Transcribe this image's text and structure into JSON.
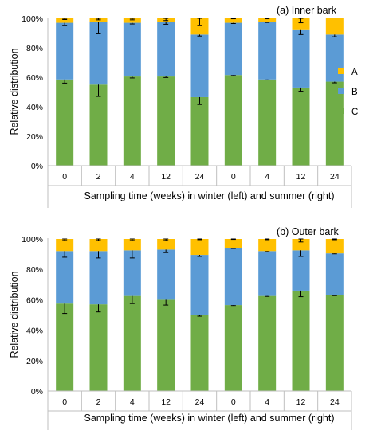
{
  "legend": [
    {
      "key": "A",
      "label": "A",
      "color": "#FFC000"
    },
    {
      "key": "B",
      "label": "B",
      "color": "#5B9BD5"
    },
    {
      "key": "C",
      "label": "C",
      "color": "#70AD47"
    }
  ],
  "chart_data": [
    {
      "type": "bar",
      "stacked": true,
      "title": "(a) Inner bark",
      "ylabel": "Relative distribution",
      "xlabel": "Sampling time (weeks) in winter (left) and summer (right)",
      "yticks": [
        "0%",
        "20%",
        "40%",
        "60%",
        "80%",
        "100%"
      ],
      "ylim": [
        0,
        100
      ],
      "categories": [
        "0",
        "2",
        "4",
        "12",
        "24",
        "0",
        "4",
        "12",
        "24"
      ],
      "series": [
        {
          "name": "C",
          "values": [
            58.5,
            55,
            60.5,
            60.5,
            46.5,
            61.5,
            58.5,
            53,
            57
          ],
          "errors": [
            2.5,
            8,
            1,
            0.7,
            5,
            0.3,
            0.3,
            2.5,
            0.8
          ]
        },
        {
          "name": "B",
          "values": [
            38.5,
            42.5,
            36.5,
            37,
            42.5,
            35.5,
            39,
            39,
            32
          ],
          "errors": [
            2,
            8,
            0.8,
            1.5,
            1,
            0.5,
            0.3,
            3,
            1.5
          ]
        },
        {
          "name": "A",
          "values": [
            3,
            2.5,
            3,
            2.5,
            11,
            3,
            2.5,
            8,
            11
          ],
          "errors": [
            0.8,
            1,
            1,
            1.5,
            5,
            0.3,
            0.3,
            3,
            0
          ]
        }
      ]
    },
    {
      "type": "bar",
      "stacked": true,
      "title": "(b) Outer bark",
      "ylabel": "Relative distribution",
      "xlabel": "Sampling time (weeks) in winter (left) and summer (right)",
      "yticks": [
        "0%",
        "20%",
        "40%",
        "60%",
        "80%",
        "100%"
      ],
      "ylim": [
        0,
        100
      ],
      "categories": [
        "0",
        "2",
        "4",
        "12",
        "24",
        "0",
        "4",
        "12",
        "24"
      ],
      "series": [
        {
          "name": "C",
          "values": [
            57.5,
            57,
            62.5,
            60,
            50,
            56.5,
            62.5,
            66,
            63
          ],
          "errors": [
            6.5,
            5,
            5,
            3.5,
            0.8,
            0.3,
            0.3,
            4,
            0.3
          ]
        },
        {
          "name": "B",
          "values": [
            34.5,
            35,
            30,
            33,
            39.5,
            37.5,
            29.5,
            26.5,
            27.5
          ],
          "errors": [
            4,
            4.5,
            5,
            2,
            1,
            0.3,
            0.3,
            4,
            0.3
          ]
        },
        {
          "name": "A",
          "values": [
            8,
            8,
            7.5,
            7,
            10.5,
            6,
            8,
            7.5,
            9.5
          ],
          "errors": [
            1,
            1,
            1,
            1,
            0.5,
            0.3,
            0.5,
            2,
            0.5
          ]
        }
      ]
    }
  ]
}
